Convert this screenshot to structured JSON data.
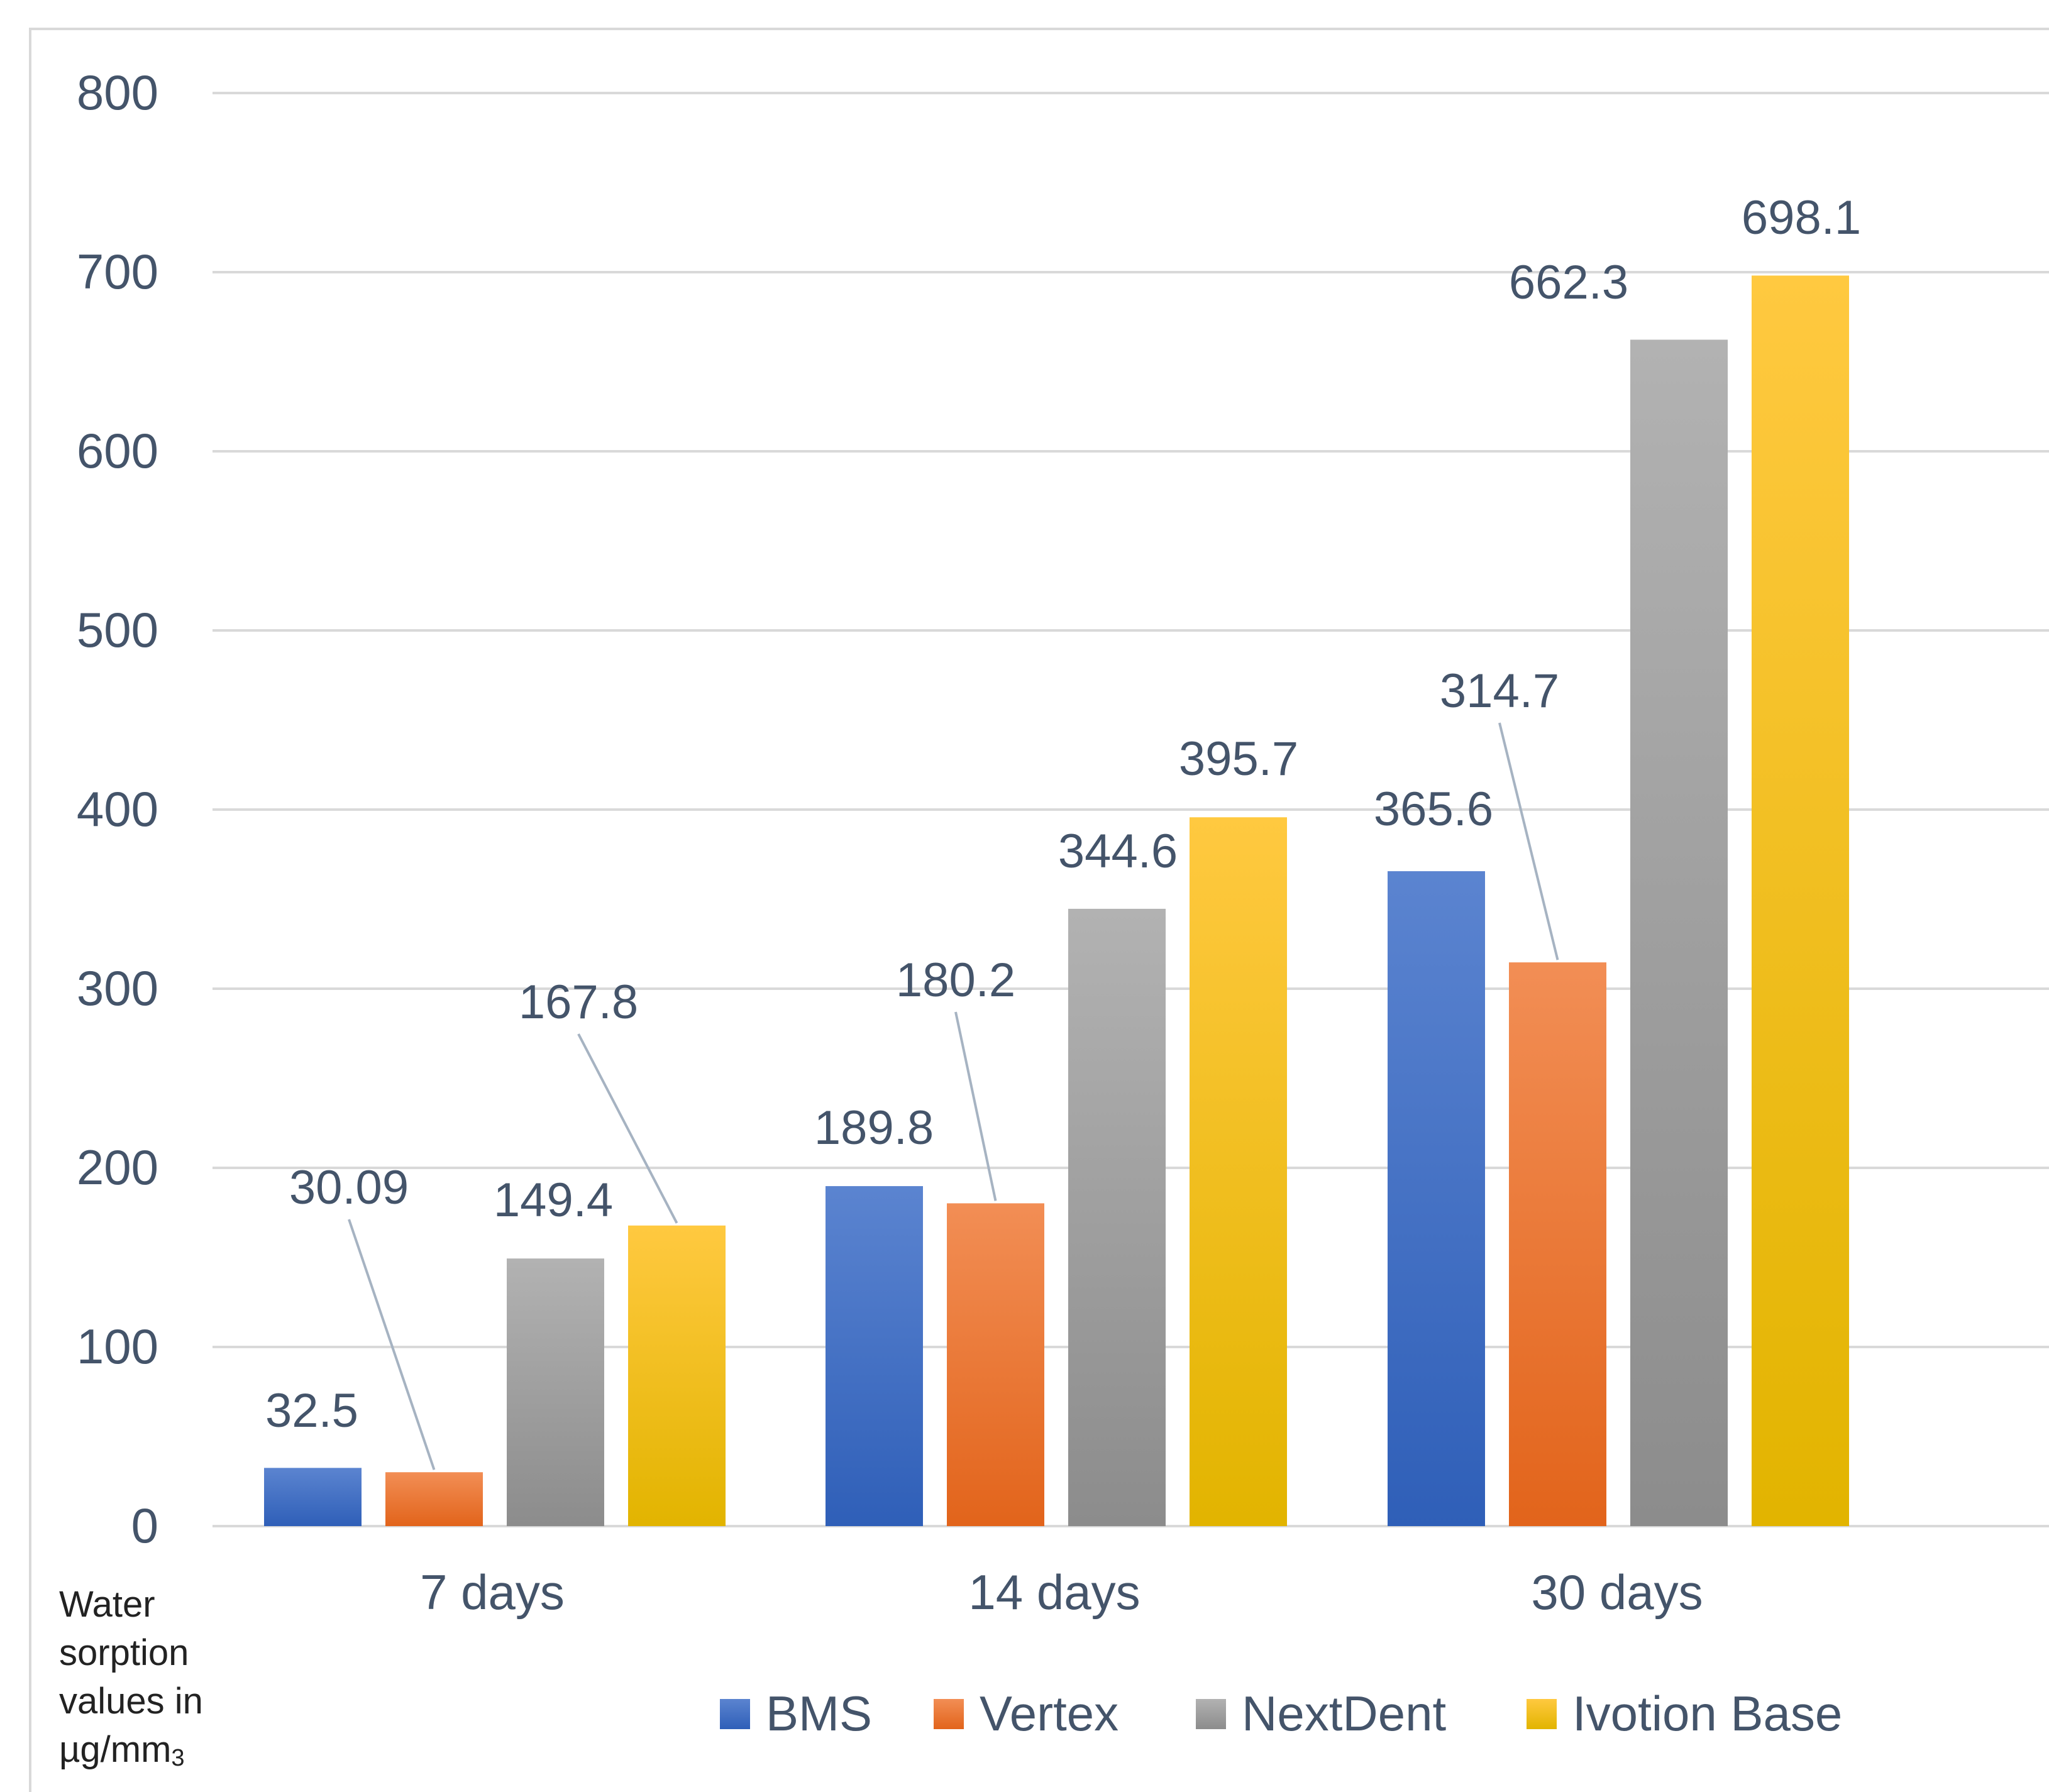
{
  "chart_data": {
    "type": "bar",
    "categories": [
      "7 days",
      "14 days",
      "30 days"
    ],
    "series": [
      {
        "name": "BMS",
        "values": [
          32.5,
          189.8,
          365.6
        ],
        "labels": [
          "32.5",
          "189.8",
          "365.6"
        ]
      },
      {
        "name": "Vertex",
        "values": [
          30.09,
          180.2,
          314.7
        ],
        "labels": [
          "30.09",
          "180.2",
          "314.7"
        ]
      },
      {
        "name": "NextDent",
        "values": [
          149.4,
          344.6,
          662.3
        ],
        "labels": [
          "149.4",
          "344.6",
          "662.3"
        ]
      },
      {
        "name": "Ivotion Base",
        "values": [
          167.8,
          395.7,
          698.1
        ],
        "labels": [
          "167.8",
          "395.7",
          "698.1"
        ]
      }
    ],
    "ylabel_lines": [
      "Water",
      "sorption",
      "values in",
      "µg/mm",
      "3"
    ],
    "ylim": [
      0,
      800
    ],
    "yticks": [
      0,
      100,
      200,
      300,
      400,
      500,
      600,
      700,
      800
    ],
    "ytick_labels": [
      "0",
      "100",
      "200",
      "300",
      "400",
      "500",
      "600",
      "700",
      "800"
    ],
    "grid": true,
    "legend_position": "bottom",
    "colors": {
      "BMS": [
        "#5b84d0",
        "#2f5fb8"
      ],
      "Vertex": [
        "#f28e55",
        "#e2641b"
      ],
      "NextDent": [
        "#b2b2b2",
        "#8c8c8c"
      ],
      "Ivotion Base": [
        "#ffc940",
        "#e2b400"
      ],
      "text": "#44546a",
      "gridline": "#d9d9d9",
      "leader": "#a6b3c2"
    }
  }
}
